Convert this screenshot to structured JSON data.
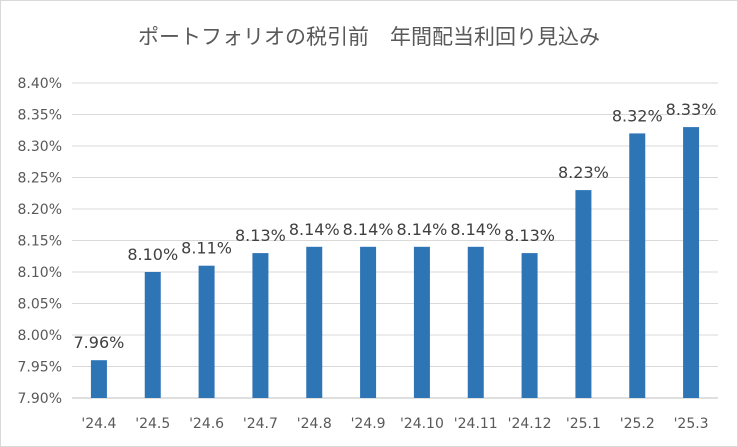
{
  "chart_data": {
    "type": "bar",
    "title": "ポートフォリオの税引前　年間配当利回り見込み",
    "categories": [
      "'24.4",
      "'24.5",
      "'24.6",
      "'24.7",
      "'24.8",
      "'24.9",
      "'24.10",
      "'24.11",
      "'24.12",
      "'25.1",
      "'25.2",
      "'25.3"
    ],
    "values": [
      7.96,
      8.1,
      8.11,
      8.13,
      8.14,
      8.14,
      8.14,
      8.14,
      8.13,
      8.23,
      8.32,
      8.33
    ],
    "data_labels": [
      "7.96%",
      "8.10%",
      "8.11%",
      "8.13%",
      "8.14%",
      "8.14%",
      "8.14%",
      "8.14%",
      "8.13%",
      "8.23%",
      "8.32%",
      "8.33%"
    ],
    "y_ticks": [
      "7.90%",
      "7.95%",
      "8.00%",
      "8.05%",
      "8.10%",
      "8.15%",
      "8.20%",
      "8.25%",
      "8.30%",
      "8.35%",
      "8.40%"
    ],
    "ylim": [
      7.9,
      8.4
    ],
    "ylabel": "",
    "xlabel": "",
    "grid": true,
    "legend": "none",
    "bar_color": "#2e75b6",
    "grid_color": "#d9d9d9"
  }
}
